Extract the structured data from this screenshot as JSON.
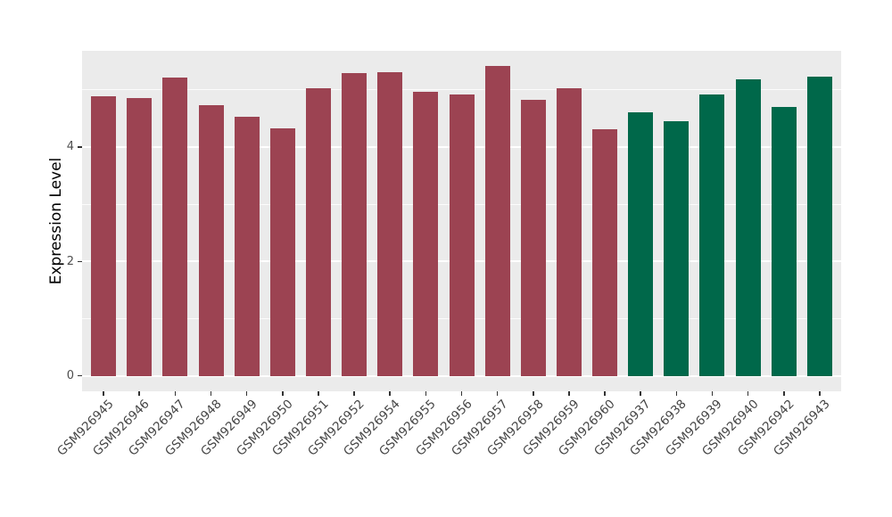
{
  "chart_data": {
    "type": "bar",
    "title": "",
    "xlabel": "",
    "ylabel": "Expression Level",
    "categories": [
      "GSM926945",
      "GSM926946",
      "GSM926947",
      "GSM926948",
      "GSM926949",
      "GSM926950",
      "GSM926951",
      "GSM926952",
      "GSM926954",
      "GSM926955",
      "GSM926956",
      "GSM926957",
      "GSM926958",
      "GSM926959",
      "GSM926960",
      "GSM926937",
      "GSM926938",
      "GSM926939",
      "GSM926940",
      "GSM926942",
      "GSM926943"
    ],
    "values": [
      4.89,
      4.86,
      5.22,
      4.73,
      4.53,
      4.32,
      5.03,
      5.29,
      5.3,
      4.97,
      4.92,
      5.41,
      4.82,
      5.03,
      4.31,
      4.6,
      4.45,
      4.91,
      5.19,
      4.7,
      5.23
    ],
    "bar_groups": [
      "red",
      "red",
      "red",
      "red",
      "red",
      "red",
      "red",
      "red",
      "red",
      "red",
      "red",
      "red",
      "red",
      "red",
      "red",
      "green",
      "green",
      "green",
      "green",
      "green",
      "green"
    ],
    "group_colors": {
      "red": "#9C4352",
      "green": "#00684A"
    },
    "ylim": [
      0,
      5.68
    ],
    "yticks": [
      0,
      2,
      4
    ],
    "yticks_minor": [
      1,
      3,
      5
    ],
    "x_tick_rotation_deg": 45,
    "legend": "none",
    "grid": "white major and minor horizontal lines on gray panel",
    "panel_bg": "#EBEBEB",
    "grid_color": "#FFFFFF",
    "axis_text_color": "#4D4D4D",
    "axis_title_color": "#000000"
  }
}
